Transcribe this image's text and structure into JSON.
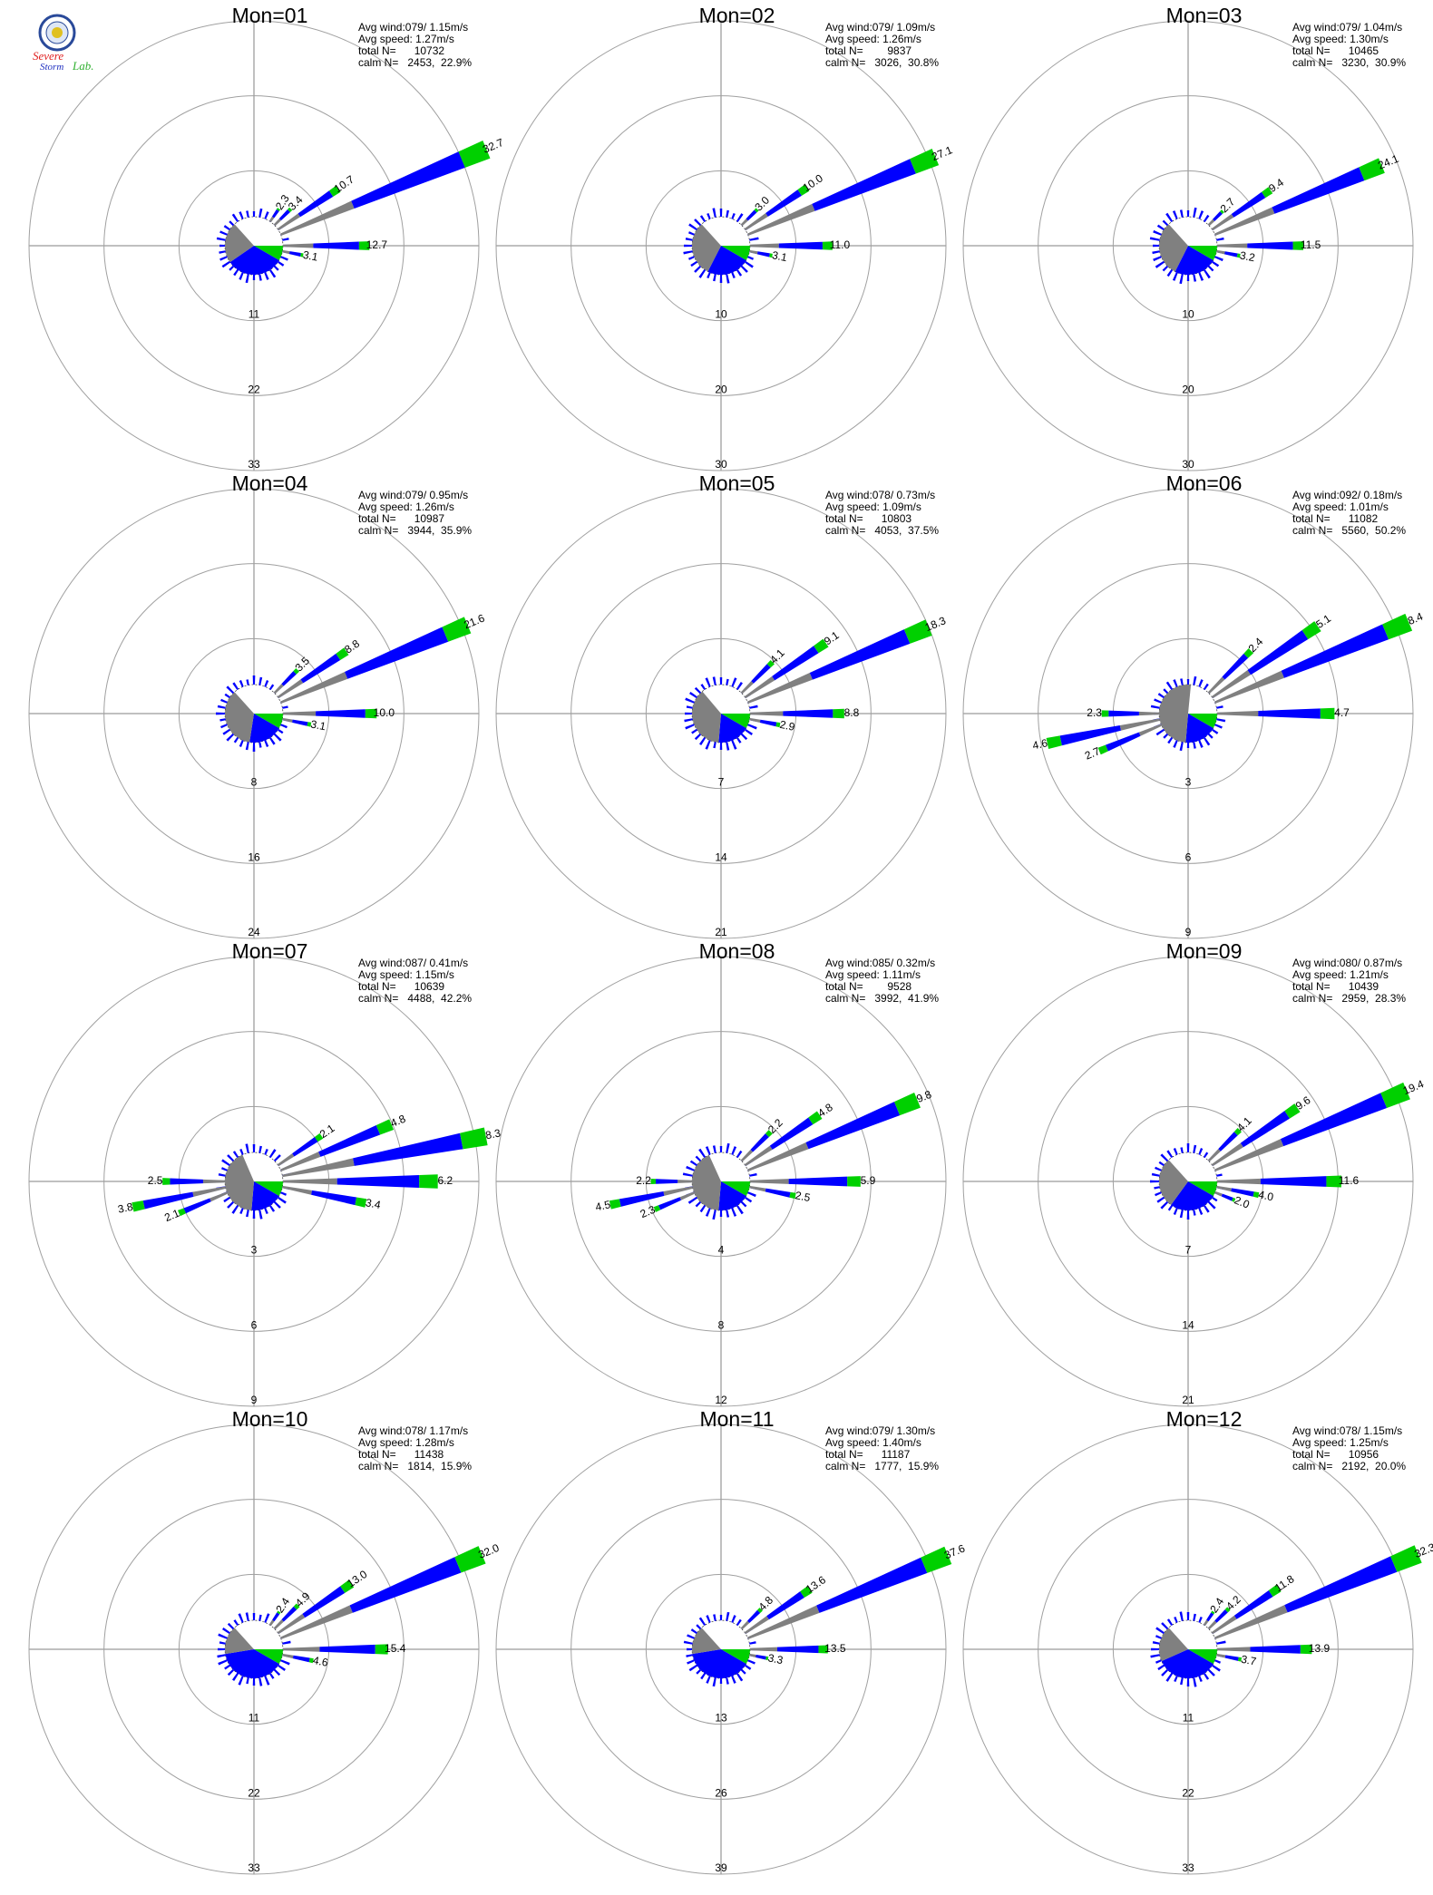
{
  "logo": {
    "line1": "Severe",
    "line2": "Storm",
    "line3": "Lab.",
    "colors": {
      "seal_blue": "#2a4a9a",
      "seal_gold": "#e0c020",
      "text_red": "#e02020",
      "text_green": "#30b030",
      "text_blue": "#2030c0"
    }
  },
  "colors": {
    "calm_sector": "#808080",
    "bar_speed1": "#808080",
    "bar_speed2": "#0000ff",
    "bar_speed3": "#00d000",
    "light_sector": "#0000ff",
    "mid_sector": "#00d000",
    "grid": "#a0a0a0",
    "axis": "#808080"
  },
  "chart_data": [
    {
      "type": "wind-rose",
      "title": "Mon=01",
      "avg_wind": "Avg wind:079/ 1.15m/s",
      "avg_speed": "Avg speed: 1.27m/s",
      "total_n": "total N=      10732",
      "calm_n": "calm N=   2453,  22.9%",
      "rings": [
        "11",
        "22",
        "33"
      ],
      "ring_max": 33,
      "bars": [
        {
          "dir": 67.5,
          "value": 32.7,
          "label": "32.7"
        },
        {
          "dir": 56,
          "value": 10.7,
          "label": "10.7"
        },
        {
          "dir": 45,
          "value": 3.4,
          "label": "3.4"
        },
        {
          "dir": 34,
          "value": 2.3,
          "label": "2.3"
        },
        {
          "dir": 90,
          "value": 12.7,
          "label": "12.7"
        },
        {
          "dir": 101,
          "value": 3.1,
          "label": "3.1"
        }
      ]
    },
    {
      "type": "wind-rose",
      "title": "Mon=02",
      "avg_wind": "Avg wind:079/ 1.09m/s",
      "avg_speed": "Avg speed: 1.26m/s",
      "total_n": "total N=        9837",
      "calm_n": "calm N=   3026,  30.8%",
      "rings": [
        "10",
        "20",
        "30"
      ],
      "ring_max": 30,
      "bars": [
        {
          "dir": 67.5,
          "value": 27.1,
          "label": "27.1"
        },
        {
          "dir": 56,
          "value": 10.0,
          "label": "10.0"
        },
        {
          "dir": 45,
          "value": 3.0,
          "label": "3.0"
        },
        {
          "dir": 90,
          "value": 11.0,
          "label": "11.0"
        },
        {
          "dir": 101,
          "value": 3.1,
          "label": "3.1"
        }
      ]
    },
    {
      "type": "wind-rose",
      "title": "Mon=03",
      "avg_wind": "Avg wind:079/ 1.04m/s",
      "avg_speed": "Avg speed: 1.30m/s",
      "total_n": "total N=      10465",
      "calm_n": "calm N=   3230,  30.9%",
      "rings": [
        "10",
        "20",
        "30"
      ],
      "ring_max": 30,
      "bars": [
        {
          "dir": 67.5,
          "value": 24.1,
          "label": "24.1"
        },
        {
          "dir": 56,
          "value": 9.4,
          "label": "9.4"
        },
        {
          "dir": 45,
          "value": 2.7,
          "label": "2.7"
        },
        {
          "dir": 90,
          "value": 11.5,
          "label": "11.5"
        },
        {
          "dir": 101,
          "value": 3.2,
          "label": "3.2"
        }
      ]
    },
    {
      "type": "wind-rose",
      "title": "Mon=04",
      "avg_wind": "Avg wind:079/ 0.95m/s",
      "avg_speed": "Avg speed: 1.26m/s",
      "total_n": "total N=      10987",
      "calm_n": "calm N=   3944,  35.9%",
      "rings": [
        "8",
        "16",
        "24"
      ],
      "ring_max": 24,
      "bars": [
        {
          "dir": 67.5,
          "value": 21.6,
          "label": "21.6"
        },
        {
          "dir": 56,
          "value": 8.8,
          "label": "8.8"
        },
        {
          "dir": 45,
          "value": 3.5,
          "label": "3.5"
        },
        {
          "dir": 90,
          "value": 10.0,
          "label": "10.0"
        },
        {
          "dir": 101,
          "value": 3.1,
          "label": "3.1"
        }
      ]
    },
    {
      "type": "wind-rose",
      "title": "Mon=05",
      "avg_wind": "Avg wind:078/ 0.73m/s",
      "avg_speed": "Avg speed: 1.09m/s",
      "total_n": "total N=      10803",
      "calm_n": "calm N=   4053,  37.5%",
      "rings": [
        "7",
        "14",
        "21"
      ],
      "ring_max": 21,
      "bars": [
        {
          "dir": 67.5,
          "value": 18.3,
          "label": "18.3"
        },
        {
          "dir": 56,
          "value": 9.1,
          "label": "9.1"
        },
        {
          "dir": 45,
          "value": 4.1,
          "label": "4.1"
        },
        {
          "dir": 90,
          "value": 8.8,
          "label": "8.8"
        },
        {
          "dir": 101,
          "value": 2.9,
          "label": "2.9"
        }
      ]
    },
    {
      "type": "wind-rose",
      "title": "Mon=06",
      "avg_wind": "Avg wind:092/ 0.18m/s",
      "avg_speed": "Avg speed: 1.01m/s",
      "total_n": "total N=      11082",
      "calm_n": "calm N=   5560,  50.2%",
      "rings": [
        "3",
        "6",
        "9"
      ],
      "ring_max": 9,
      "bars": [
        {
          "dir": 67.5,
          "value": 8.4,
          "label": "8.4"
        },
        {
          "dir": 56,
          "value": 5.1,
          "label": "5.1"
        },
        {
          "dir": 45,
          "value": 2.4,
          "label": "2.4"
        },
        {
          "dir": 90,
          "value": 4.7,
          "label": "4.7"
        },
        {
          "dir": 258,
          "value": 4.6,
          "label": "4.6"
        },
        {
          "dir": 270,
          "value": 2.3,
          "label": "2.3"
        },
        {
          "dir": 247,
          "value": 2.7,
          "label": "2.7"
        }
      ]
    },
    {
      "type": "wind-rose",
      "title": "Mon=07",
      "avg_wind": "Avg wind:087/ 0.41m/s",
      "avg_speed": "Avg speed: 1.15m/s",
      "total_n": "total N=      10639",
      "calm_n": "calm N=   4488,  42.2%",
      "rings": [
        "3",
        "6",
        "9"
      ],
      "ring_max": 9,
      "bars": [
        {
          "dir": 79,
          "value": 8.3,
          "label": "8.3"
        },
        {
          "dir": 67.5,
          "value": 4.8,
          "label": "4.8"
        },
        {
          "dir": 56,
          "value": 2.1,
          "label": "2.1"
        },
        {
          "dir": 90,
          "value": 6.2,
          "label": "6.2"
        },
        {
          "dir": 101,
          "value": 3.4,
          "label": "3.4"
        },
        {
          "dir": 258,
          "value": 3.8,
          "label": "3.8"
        },
        {
          "dir": 270,
          "value": 2.5,
          "label": "2.5"
        },
        {
          "dir": 247,
          "value": 2.1,
          "label": "2.1"
        }
      ]
    },
    {
      "type": "wind-rose",
      "title": "Mon=08",
      "avg_wind": "Avg wind:085/ 0.32m/s",
      "avg_speed": "Avg speed: 1.11m/s",
      "total_n": "total N=        9528",
      "calm_n": "calm N=   3992,  41.9%",
      "rings": [
        "4",
        "8",
        "12"
      ],
      "ring_max": 12,
      "bars": [
        {
          "dir": 67.5,
          "value": 9.8,
          "label": "9.8"
        },
        {
          "dir": 56,
          "value": 4.8,
          "label": "4.8"
        },
        {
          "dir": 45,
          "value": 2.2,
          "label": "2.2"
        },
        {
          "dir": 90,
          "value": 5.9,
          "label": "5.9"
        },
        {
          "dir": 101,
          "value": 2.5,
          "label": "2.5"
        },
        {
          "dir": 258,
          "value": 4.5,
          "label": "4.5"
        },
        {
          "dir": 270,
          "value": 2.2,
          "label": "2.2"
        },
        {
          "dir": 247,
          "value": 2.3,
          "label": "2.3"
        }
      ]
    },
    {
      "type": "wind-rose",
      "title": "Mon=09",
      "avg_wind": "Avg wind:080/ 0.87m/s",
      "avg_speed": "Avg speed: 1.21m/s",
      "total_n": "total N=      10439",
      "calm_n": "calm N=   2959,  28.3%",
      "rings": [
        "7",
        "14",
        "21"
      ],
      "ring_max": 21,
      "bars": [
        {
          "dir": 67.5,
          "value": 19.4,
          "label": "19.4"
        },
        {
          "dir": 56,
          "value": 9.6,
          "label": "9.6"
        },
        {
          "dir": 45,
          "value": 4.1,
          "label": "4.1"
        },
        {
          "dir": 90,
          "value": 11.6,
          "label": "11.6"
        },
        {
          "dir": 101,
          "value": 4.0,
          "label": "4.0"
        },
        {
          "dir": 112,
          "value": 2.0,
          "label": "2.0"
        }
      ]
    },
    {
      "type": "wind-rose",
      "title": "Mon=10",
      "avg_wind": "Avg wind:078/ 1.17m/s",
      "avg_speed": "Avg speed: 1.28m/s",
      "total_n": "total N=      11438",
      "calm_n": "calm N=   1814,  15.9%",
      "rings": [
        "11",
        "22",
        "33"
      ],
      "ring_max": 33,
      "bars": [
        {
          "dir": 67.5,
          "value": 32.0,
          "label": "32.0"
        },
        {
          "dir": 56,
          "value": 13.0,
          "label": "13.0"
        },
        {
          "dir": 45,
          "value": 4.9,
          "label": "4.9"
        },
        {
          "dir": 34,
          "value": 2.4,
          "label": "2.4"
        },
        {
          "dir": 90,
          "value": 15.4,
          "label": "15.4"
        },
        {
          "dir": 101,
          "value": 4.6,
          "label": "4.6"
        }
      ]
    },
    {
      "type": "wind-rose",
      "title": "Mon=11",
      "avg_wind": "Avg wind:079/ 1.30m/s",
      "avg_speed": "Avg speed: 1.40m/s",
      "total_n": "total N=      11187",
      "calm_n": "calm N=   1777,  15.9%",
      "rings": [
        "13",
        "26",
        "39"
      ],
      "ring_max": 39,
      "bars": [
        {
          "dir": 67.5,
          "value": 37.6,
          "label": "37.6"
        },
        {
          "dir": 56,
          "value": 13.6,
          "label": "13.6"
        },
        {
          "dir": 45,
          "value": 4.8,
          "label": "4.8"
        },
        {
          "dir": 90,
          "value": 13.5,
          "label": "13.5"
        },
        {
          "dir": 101,
          "value": 3.3,
          "label": "3.3"
        }
      ]
    },
    {
      "type": "wind-rose",
      "title": "Mon=12",
      "avg_wind": "Avg wind:078/ 1.15m/s",
      "avg_speed": "Avg speed: 1.25m/s",
      "total_n": "total N=      10956",
      "calm_n": "calm N=   2192,  20.0%",
      "rings": [
        "11",
        "22",
        "33"
      ],
      "ring_max": 33,
      "bars": [
        {
          "dir": 67.5,
          "value": 32.3,
          "label": "32.3"
        },
        {
          "dir": 56,
          "value": 11.8,
          "label": "11.8"
        },
        {
          "dir": 45,
          "value": 4.2,
          "label": "4.2"
        },
        {
          "dir": 34,
          "value": 2.4,
          "label": "2.4"
        },
        {
          "dir": 90,
          "value": 13.9,
          "label": "13.9"
        },
        {
          "dir": 101,
          "value": 3.7,
          "label": "3.7"
        }
      ]
    }
  ]
}
